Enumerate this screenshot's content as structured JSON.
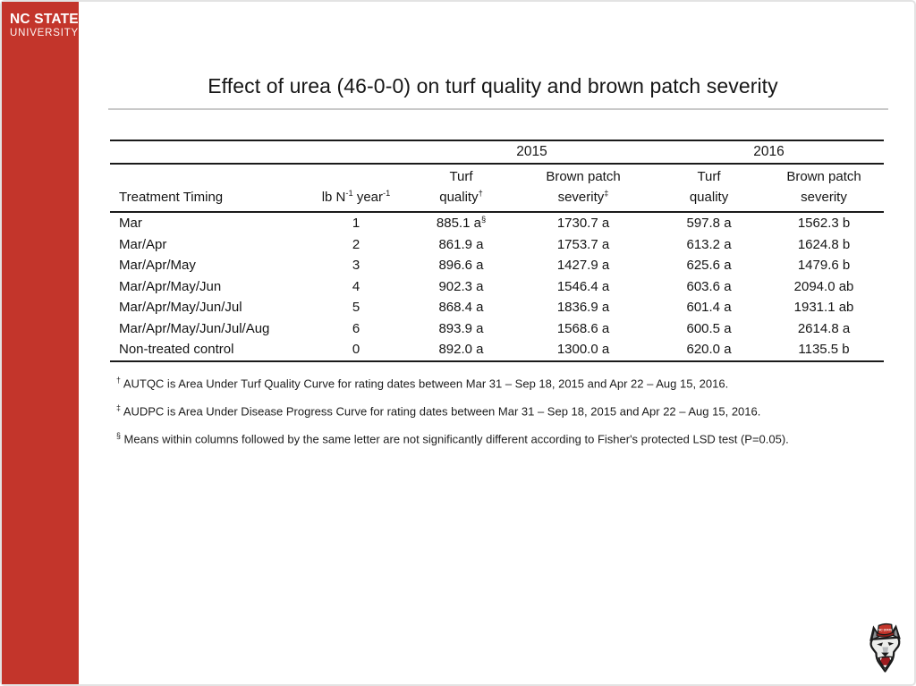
{
  "brand": {
    "red": "#c3352b",
    "logo_line1": "NC STATE",
    "logo_line2": "UNIVERSITY"
  },
  "title": "Effect of urea (46-0-0) on turf quality and brown patch severity",
  "table": {
    "years": [
      "2015",
      "2016"
    ],
    "header": {
      "treatment": "Treatment Timing",
      "rate": {
        "p1": "lb N",
        "s1": "-1",
        "p2": " year",
        "s2": "-1"
      },
      "tq2015": {
        "line1": "Turf",
        "line2": "quality",
        "sup": "†"
      },
      "bp2015": {
        "line1": "Brown patch",
        "line2": "severity",
        "sup": "‡"
      },
      "tq2016": {
        "line1": "Turf",
        "line2": "quality",
        "sup": ""
      },
      "bp2016": {
        "line1": "Brown patch",
        "line2": "severity",
        "sup": ""
      }
    },
    "rows": [
      [
        "Mar",
        "1",
        "885.1 a§",
        "1730.7 a",
        "597.8 a",
        "1562.3 b"
      ],
      [
        "Mar/Apr",
        "2",
        "861.9 a",
        "1753.7 a",
        "613.2 a",
        "1624.8 b"
      ],
      [
        "Mar/Apr/May",
        "3",
        "896.6 a",
        "1427.9 a",
        "625.6 a",
        "1479.6 b"
      ],
      [
        "Mar/Apr/May/Jun",
        "4",
        "902.3 a",
        "1546.4 a",
        "603.6 a",
        "2094.0 ab"
      ],
      [
        "Mar/Apr/May/Jun/Jul",
        "5",
        "868.4 a",
        "1836.9 a",
        "601.4 a",
        "1931.1 ab"
      ],
      [
        "Mar/Apr/May/Jun/Jul/Aug",
        "6",
        "893.9 a",
        "1568.6 a",
        "600.5 a",
        "2614.8 a"
      ],
      [
        "Non-treated control",
        "0",
        "892.0 a",
        "1300.0 a",
        "620.0 a",
        "1135.5 b"
      ]
    ]
  },
  "footnotes": [
    {
      "sym": "†",
      "text": "AUTQC is Area Under Turf Quality Curve for rating dates between Mar 31 – Sep 18, 2015 and Apr 22 – Aug 15, 2016."
    },
    {
      "sym": "‡",
      "text": "AUDPC is Area Under Disease Progress Curve for rating dates between Mar 31 – Sep 18, 2015 and Apr 22 – Aug 15, 2016."
    },
    {
      "sym": "§",
      "text": "Means within columns followed by the same letter are not significantly different according to Fisher's protected LSD test (P=0.05)."
    }
  ]
}
